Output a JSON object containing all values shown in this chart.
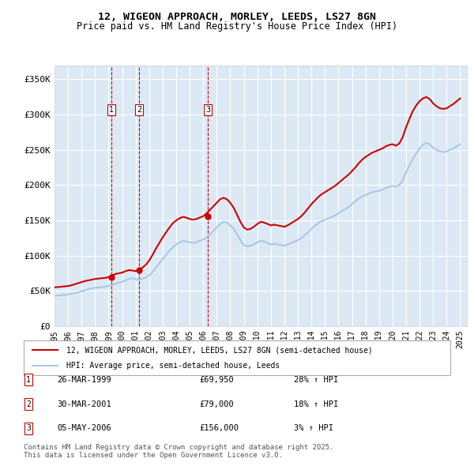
{
  "title1": "12, WIGEON APPROACH, MORLEY, LEEDS, LS27 8GN",
  "title2": "Price paid vs. HM Land Registry's House Price Index (HPI)",
  "ylabel_ticks": [
    "£0",
    "£50K",
    "£100K",
    "£150K",
    "£200K",
    "£250K",
    "£300K",
    "£350K"
  ],
  "ytick_values": [
    0,
    50000,
    100000,
    150000,
    200000,
    250000,
    300000,
    350000
  ],
  "ylim": [
    0,
    370000
  ],
  "xlim_start": 1995.0,
  "xlim_end": 2025.5,
  "bg_color": "#dce9f5",
  "grid_color": "#ffffff",
  "hpi_color": "#a8c8e8",
  "price_color": "#cc0000",
  "transactions": [
    {
      "num": 1,
      "date_label": "26-MAR-1999",
      "date_x": 1999.23,
      "price": 69950,
      "pct": "28%",
      "dir": "↑"
    },
    {
      "num": 2,
      "date_label": "30-MAR-2001",
      "date_x": 2001.25,
      "price": 79000,
      "pct": "18%",
      "dir": "↑"
    },
    {
      "num": 3,
      "date_label": "05-MAY-2006",
      "date_x": 2006.35,
      "price": 156000,
      "pct": "3%",
      "dir": "↑"
    }
  ],
  "legend_line1": "12, WIGEON APPROACH, MORLEY, LEEDS, LS27 8GN (semi-detached house)",
  "legend_line2": "HPI: Average price, semi-detached house, Leeds",
  "footnote": "Contains HM Land Registry data © Crown copyright and database right 2025.\nThis data is licensed under the Open Government Licence v3.0.",
  "hpi_data_x": [
    1995.0,
    1995.25,
    1995.5,
    1995.75,
    1996.0,
    1996.25,
    1996.5,
    1996.75,
    1997.0,
    1997.25,
    1997.5,
    1997.75,
    1998.0,
    1998.25,
    1998.5,
    1998.75,
    1999.0,
    1999.25,
    1999.5,
    1999.75,
    2000.0,
    2000.25,
    2000.5,
    2000.75,
    2001.0,
    2001.25,
    2001.5,
    2001.75,
    2002.0,
    2002.25,
    2002.5,
    2002.75,
    2003.0,
    2003.25,
    2003.5,
    2003.75,
    2004.0,
    2004.25,
    2004.5,
    2004.75,
    2005.0,
    2005.25,
    2005.5,
    2005.75,
    2006.0,
    2006.25,
    2006.5,
    2006.75,
    2007.0,
    2007.25,
    2007.5,
    2007.75,
    2008.0,
    2008.25,
    2008.5,
    2008.75,
    2009.0,
    2009.25,
    2009.5,
    2009.75,
    2010.0,
    2010.25,
    2010.5,
    2010.75,
    2011.0,
    2011.25,
    2011.5,
    2011.75,
    2012.0,
    2012.25,
    2012.5,
    2012.75,
    2013.0,
    2013.25,
    2013.5,
    2013.75,
    2014.0,
    2014.25,
    2014.5,
    2014.75,
    2015.0,
    2015.25,
    2015.5,
    2015.75,
    2016.0,
    2016.25,
    2016.5,
    2016.75,
    2017.0,
    2017.25,
    2017.5,
    2017.75,
    2018.0,
    2018.25,
    2018.5,
    2018.75,
    2019.0,
    2019.25,
    2019.5,
    2019.75,
    2020.0,
    2020.25,
    2020.5,
    2020.75,
    2021.0,
    2021.25,
    2021.5,
    2021.75,
    2022.0,
    2022.25,
    2022.5,
    2022.75,
    2023.0,
    2023.25,
    2023.5,
    2023.75,
    2024.0,
    2024.25,
    2024.5,
    2024.75,
    2025.0
  ],
  "hpi_data_y": [
    43000,
    43500,
    44000,
    44500,
    45000,
    46000,
    47000,
    48000,
    49500,
    51000,
    52500,
    53500,
    54500,
    55000,
    55500,
    56000,
    57000,
    58500,
    60000,
    61500,
    63000,
    65000,
    67000,
    68000,
    67000,
    65500,
    67000,
    69000,
    72000,
    77000,
    83000,
    89000,
    95000,
    101000,
    107000,
    112000,
    116000,
    119000,
    121000,
    120000,
    119000,
    118000,
    119000,
    121000,
    123000,
    126000,
    130000,
    135000,
    140000,
    145000,
    148000,
    147000,
    143000,
    138000,
    130000,
    122000,
    115000,
    113000,
    114000,
    116000,
    119000,
    121000,
    120000,
    118000,
    116000,
    117000,
    116000,
    115000,
    114000,
    116000,
    118000,
    120000,
    122000,
    125000,
    129000,
    133000,
    138000,
    142000,
    146000,
    149000,
    151000,
    153000,
    155000,
    157000,
    160000,
    163000,
    166000,
    169000,
    173000,
    177000,
    181000,
    184000,
    186000,
    188000,
    190000,
    191000,
    192000,
    194000,
    196000,
    198000,
    199000,
    198000,
    200000,
    207000,
    218000,
    228000,
    237000,
    245000,
    252000,
    257000,
    260000,
    258000,
    253000,
    250000,
    248000,
    247000,
    248000,
    250000,
    252000,
    255000,
    258000
  ],
  "price_data_x": [
    1995.0,
    1995.25,
    1995.5,
    1995.75,
    1996.0,
    1996.25,
    1996.5,
    1996.75,
    1997.0,
    1997.25,
    1997.5,
    1997.75,
    1998.0,
    1998.25,
    1998.5,
    1998.75,
    1999.0,
    1999.25,
    1999.5,
    1999.75,
    2000.0,
    2000.25,
    2000.5,
    2000.75,
    2001.0,
    2001.25,
    2001.5,
    2001.75,
    2002.0,
    2002.25,
    2002.5,
    2002.75,
    2003.0,
    2003.25,
    2003.5,
    2003.75,
    2004.0,
    2004.25,
    2004.5,
    2004.75,
    2005.0,
    2005.25,
    2005.5,
    2005.75,
    2006.0,
    2006.25,
    2006.5,
    2006.75,
    2007.0,
    2007.25,
    2007.5,
    2007.75,
    2008.0,
    2008.25,
    2008.5,
    2008.75,
    2009.0,
    2009.25,
    2009.5,
    2009.75,
    2010.0,
    2010.25,
    2010.5,
    2010.75,
    2011.0,
    2011.25,
    2011.5,
    2011.75,
    2012.0,
    2012.25,
    2012.5,
    2012.75,
    2013.0,
    2013.25,
    2013.5,
    2013.75,
    2014.0,
    2014.25,
    2014.5,
    2014.75,
    2015.0,
    2015.25,
    2015.5,
    2015.75,
    2016.0,
    2016.25,
    2016.5,
    2016.75,
    2017.0,
    2017.25,
    2017.5,
    2017.75,
    2018.0,
    2018.25,
    2018.5,
    2018.75,
    2019.0,
    2019.25,
    2019.5,
    2019.75,
    2020.0,
    2020.25,
    2020.5,
    2020.75,
    2021.0,
    2021.25,
    2021.5,
    2021.75,
    2022.0,
    2022.25,
    2022.5,
    2022.75,
    2023.0,
    2023.25,
    2023.5,
    2023.75,
    2024.0,
    2024.25,
    2024.5,
    2024.75,
    2025.0
  ],
  "price_data_y": [
    55000,
    55500,
    56000,
    56500,
    57000,
    58000,
    59500,
    61000,
    62500,
    64000,
    65000,
    66000,
    67000,
    67500,
    68000,
    68500,
    69500,
    72000,
    74000,
    75000,
    76000,
    78000,
    79500,
    79000,
    78000,
    80500,
    83000,
    87000,
    93000,
    101000,
    110000,
    118000,
    126000,
    133000,
    140000,
    146000,
    150000,
    153000,
    155000,
    154000,
    152000,
    151000,
    152000,
    154000,
    156000,
    160000,
    165000,
    170000,
    175000,
    180000,
    182000,
    180000,
    175000,
    168000,
    158000,
    148000,
    140000,
    137000,
    138000,
    141000,
    145000,
    148000,
    147000,
    145000,
    143000,
    144000,
    143000,
    142000,
    141000,
    143000,
    146000,
    149000,
    152000,
    156000,
    161000,
    167000,
    173000,
    178000,
    183000,
    187000,
    190000,
    193000,
    196000,
    199000,
    203000,
    207000,
    211000,
    215000,
    220000,
    225000,
    231000,
    236000,
    240000,
    243000,
    246000,
    248000,
    250000,
    252000,
    255000,
    257000,
    258000,
    256000,
    259000,
    268000,
    282000,
    294000,
    305000,
    313000,
    319000,
    323000,
    325000,
    322000,
    316000,
    312000,
    309000,
    308000,
    309000,
    312000,
    315000,
    319000,
    323000
  ]
}
